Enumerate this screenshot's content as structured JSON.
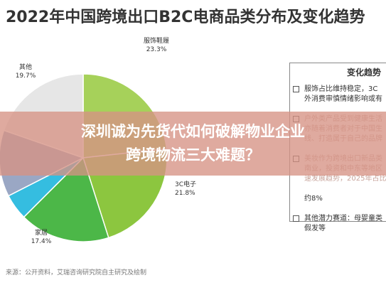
{
  "chart_data": {
    "type": "pie",
    "title": "2022年中国跨境出口B2C电商品类分布及变化趋势",
    "slices": [
      {
        "name": "服饰鞋履",
        "value": 23.3,
        "value_label": "23.3%",
        "color": "#a6d15a"
      },
      {
        "name": "3C电子",
        "value": 21.8,
        "value_label": "21.8%",
        "color": "#8cc63f"
      },
      {
        "name": "家居",
        "value": 17.4,
        "value_label": "17.4%",
        "color": "#4cb748"
      },
      {
        "name": "",
        "value": 5.0,
        "value_label": "",
        "color": "#35bde0"
      },
      {
        "name": "",
        "value": 12.8,
        "value_label": "",
        "color": "#9aa7c4"
      },
      {
        "name": "其他",
        "value": 19.7,
        "value_label": "19.7%",
        "color": "#e6e6e6"
      }
    ]
  },
  "trend_panel": {
    "title": "变化趋势",
    "items": [
      {
        "lines": [
          "服饰占比维持稳定，3C",
          "外消费审慎情绪影响或有"
        ],
        "faded": false
      },
      {
        "lines": [
          "户外类产品受到健康生活",
          "亦随着消费者对于中国生",
          "线、打造属于自己的品牌"
        ],
        "faded": true
      },
      {
        "lines": [
          "美妆作为跨境出口新品类",
          "南业，投资和中东等地区",
          "速发展趋势，2025年占比"
        ],
        "faded": true
      },
      {
        "lines": [
          "约8%"
        ],
        "faded": false
      },
      {
        "lines": [
          "其他潜力赛道：母婴童类",
          "假发等"
        ],
        "faded": false
      }
    ]
  },
  "source": "来源：公开资料，艾瑞咨询研究院自主研究及绘制",
  "overlay": {
    "line1": "深圳诚为先货代如何破解物业企业",
    "line2": "跨境物流三大难题？"
  }
}
